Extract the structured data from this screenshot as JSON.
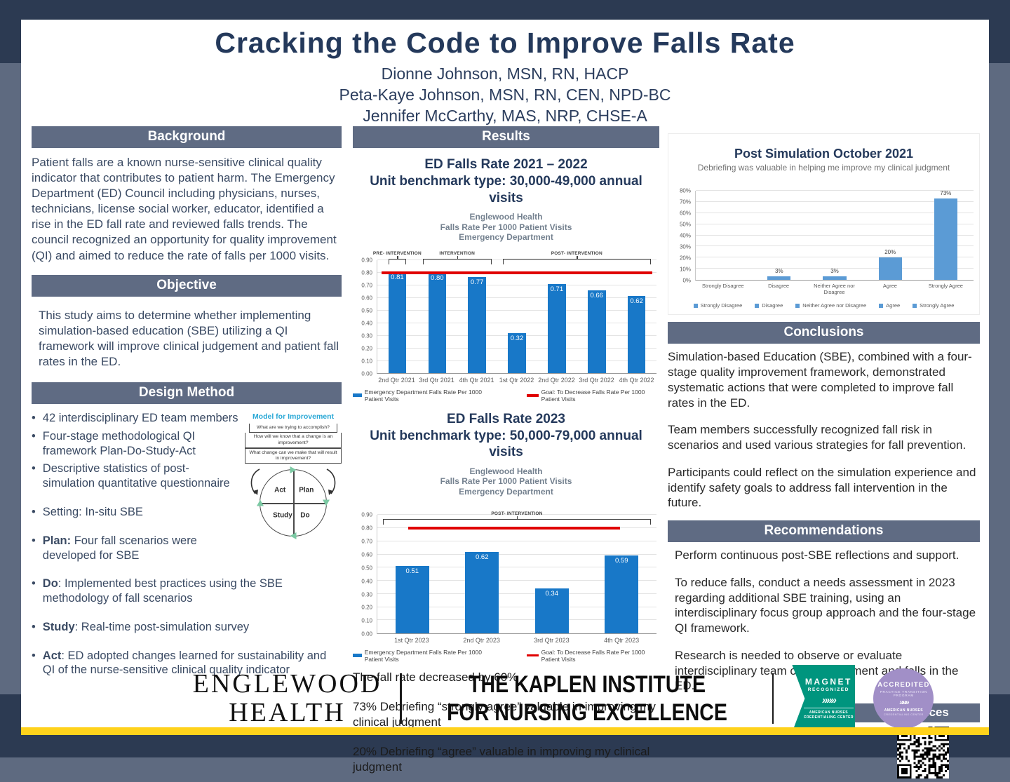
{
  "title": "Cracking the Code to Improve Falls Rate",
  "authors": [
    "Dionne Johnson, MSN, RN, HACP",
    "Peta-Kaye Johnson, MSN, RN, CEN, NPD-BC",
    "Jennifer McCarthy, MAS, NRP, CHSE-A"
  ],
  "sections": {
    "background": {
      "header": "Background",
      "body": "Patient falls are a known nurse-sensitive clinical quality indicator that contributes to patient harm. The Emergency Department (ED) Council including physicians, nurses, technicians, license social worker, educator, identified a rise in the ED fall rate and reviewed falls trends. The council recognized an opportunity for quality improvement (QI) and aimed to reduce the rate of falls per 1000 visits."
    },
    "objective": {
      "header": "Objective",
      "body": "This study aims to determine whether implementing simulation-based education (SBE) utilizing a QI framework will improve clinical judgement and patient fall rates in the ED."
    },
    "design_method": {
      "header": "Design Method",
      "bullets": [
        {
          "bold": "",
          "text": "42 interdisciplinary ED team members"
        },
        {
          "bold": "",
          "text": "Four-stage methodological QI framework Plan-Do-Study-Act"
        },
        {
          "bold": "",
          "text": "Descriptive statistics of post-simulation quantitative questionnaire"
        },
        {
          "bold": "",
          "text": "Setting: In-situ SBE"
        },
        {
          "bold": "Plan:",
          "text": " Four fall scenarios were developed for SBE"
        },
        {
          "bold": "Do",
          "text": ": Implemented best practices using the SBE methodology of fall scenarios"
        },
        {
          "bold": "Study",
          "text": ": Real-time post-simulation survey"
        },
        {
          "bold": "Act",
          "text": ": ED adopted changes learned for sustainability and QI of the nurse-sensitive clinical quality indicator"
        }
      ]
    },
    "results": {
      "header": "Results"
    },
    "conclusions": {
      "header": "Conclusions",
      "paragraphs": [
        "Simulation-based Education (SBE), combined with a four-stage quality improvement framework, demonstrated systematic actions that were completed to improve fall rates in the ED.",
        "Team members successfully recognized fall risk in scenarios and used various strategies for fall prevention.",
        "Participants could reflect on the simulation experience and identify safety goals to address fall intervention in the future."
      ]
    },
    "recommendations": {
      "header": "Recommendations",
      "paragraphs": [
        "Perform continuous post-SBE reflections and support.",
        "To reduce falls, conduct a needs assessment in 2023 regarding additional SBE training, using an interdisciplinary focus group approach and the four-stage QI framework.",
        "Research is needed to observe or evaluate interdisciplinary team clinical judgment and falls in the ED."
      ]
    },
    "references": {
      "header": "References"
    }
  },
  "model_diagram": {
    "title": "Model for Improvement",
    "boxes": [
      "What are we trying to accomplish?",
      "How will we know that a change is an improvement?",
      "What change can we make that will result in improvement?"
    ],
    "quadrants": {
      "act": "Act",
      "plan": "Plan",
      "study": "Study",
      "do": "Do"
    }
  },
  "results_notes": [
    "The fall rate decreased by 60%",
    "73% Debriefing “strongly agree” valuable in improving my clinical judgment",
    "20% Debriefing “agree” valuable in improving my clinical judgment"
  ],
  "chart_data": [
    {
      "type": "bar",
      "title": "ED Falls Rate 2021 – 2022",
      "subtitle": "Unit benchmark type: 30,000-49,000 annual visits",
      "inner_title": [
        "Englewood Health",
        "Falls Rate Per 1000 Patient Visits",
        "Emergency Department"
      ],
      "categories": [
        "2nd Qtr 2021",
        "3rd Qtr 2021",
        "4th Qtr 2021",
        "1st Qtr 2022",
        "2nd Qtr 2022",
        "3rd Qtr 2022",
        "4th Qtr 2022"
      ],
      "values": [
        0.81,
        0.8,
        0.77,
        0.32,
        0.71,
        0.66,
        0.62
      ],
      "value_labels": [
        "0.81",
        "0.80",
        "0.77",
        "0.32",
        "0.71",
        "0.66",
        "0.62"
      ],
      "ylim": [
        0,
        0.9
      ],
      "ytick_labels": [
        "0.00",
        "0.10",
        "0.20",
        "0.30",
        "0.40",
        "0.50",
        "0.60",
        "0.70",
        "0.80",
        "0.90"
      ],
      "goal_line": 0.8,
      "bar_color": "#1878c8",
      "annotations": [
        {
          "label": "PRE- INTERVENTION",
          "from": 0,
          "to": 0
        },
        {
          "label": "INTERVENTION",
          "from": 1,
          "to": 2
        },
        {
          "label": "POST- INTERVENTION",
          "from": 3,
          "to": 6
        }
      ],
      "legend": [
        {
          "marker": "bar",
          "color": "#1878c8",
          "label": "Emergency Department Falls Rate Per 1000 Patient Visits"
        },
        {
          "marker": "line",
          "color": "#e00000",
          "label": "Goal: To Decrease Falls Rate Per 1000 Patient Visits"
        }
      ]
    },
    {
      "type": "bar",
      "title": "ED Falls Rate 2023",
      "subtitle": "Unit benchmark type: 50,000-79,000 annual visits",
      "inner_title": [
        "Englewood Health",
        "Falls Rate Per 1000 Patient Visits",
        "Emergency Department"
      ],
      "categories": [
        "1st Qtr 2023",
        "2nd Qtr 2023",
        "3rd Qtr 2023",
        "4th Qtr 2023"
      ],
      "values": [
        0.51,
        0.62,
        0.34,
        0.59
      ],
      "value_labels": [
        "0.51",
        "0.62",
        "0.34",
        "0.59"
      ],
      "ylim": [
        0,
        0.9
      ],
      "ytick_labels": [
        "0.00",
        "0.10",
        "0.20",
        "0.30",
        "0.40",
        "0.50",
        "0.60",
        "0.70",
        "0.80",
        "0.90"
      ],
      "goal_line": 0.8,
      "bar_color": "#1878c8",
      "annotations": [
        {
          "label": "POST- INTERVENTION",
          "from": 0,
          "to": 3
        }
      ],
      "legend": [
        {
          "marker": "bar",
          "color": "#1878c8",
          "label": "Emergency Department Falls Rate Per 1000 Patient Visits"
        },
        {
          "marker": "line",
          "color": "#e00000",
          "label": "Goal: To Decrease Falls Rate Per 1000 Patient Visits"
        }
      ]
    },
    {
      "type": "bar",
      "title": "Post Simulation October 2021",
      "subtitle": "Debriefing was valuable in helping me improve my clinical judgment",
      "categories": [
        "Strongly Disagree",
        "Disagree",
        "Neither Agree nor Disagree",
        "Agree",
        "Strongly Agree"
      ],
      "values": [
        0,
        3,
        3,
        20,
        73
      ],
      "value_labels": [
        "",
        "3%",
        "3%",
        "20%",
        "73%"
      ],
      "ylim": [
        0,
        80
      ],
      "ytick_labels": [
        "0%",
        "10%",
        "20%",
        "30%",
        "40%",
        "50%",
        "60%",
        "70%",
        "80%"
      ],
      "goal_line": null,
      "bar_color": "#5B9BD5",
      "annotations": [],
      "legend": [
        {
          "marker": "sq",
          "color": "#5B9BD5",
          "label": "Strongly Disagree"
        },
        {
          "marker": "sq",
          "color": "#5B9BD5",
          "label": "Disagree"
        },
        {
          "marker": "sq",
          "color": "#5B9BD5",
          "label": "Neither Agree nor Disagree"
        },
        {
          "marker": "sq",
          "color": "#5B9BD5",
          "label": "Agree"
        },
        {
          "marker": "sq",
          "color": "#5B9BD5",
          "label": "Strongly Agree"
        }
      ]
    }
  ],
  "footer": {
    "org_line1": "ENGLEWOOD",
    "org_line2": "HEALTH",
    "institute_line1": "THE KAPLEN INSTITUTE",
    "institute_line2": "FOR NURSING EXCELLENCE",
    "badges": {
      "magnet": {
        "line1": "MAGNET",
        "line2": "RECOGNIZED",
        "chevrons": "»»»",
        "org1": "AMERICAN NURSES",
        "org2": "CREDENTIALING CENTER",
        "color": "#00957e"
      },
      "accredited": {
        "line1": "ACCREDITED",
        "line2": "PRACTICE TRANSITION",
        "line3": "PROGRAM",
        "chevrons": "»»»",
        "org1": "AMERICAN NURSES",
        "org2": "CREDENTIALING CENTER",
        "color": "#a18fc7"
      }
    }
  },
  "colors": {
    "frame_navy": "#2c3a52",
    "frame_slate": "#5e6a80",
    "header_bar": "#5f6b83",
    "title_navy": "#24395b",
    "chart_blue": "#1878c8",
    "chart_light_blue": "#5B9BD5",
    "goal_red": "#e00000",
    "stripe_yellow": "#ffd21c",
    "magnet_green": "#00957e",
    "accredited_purple": "#a18fc7"
  }
}
